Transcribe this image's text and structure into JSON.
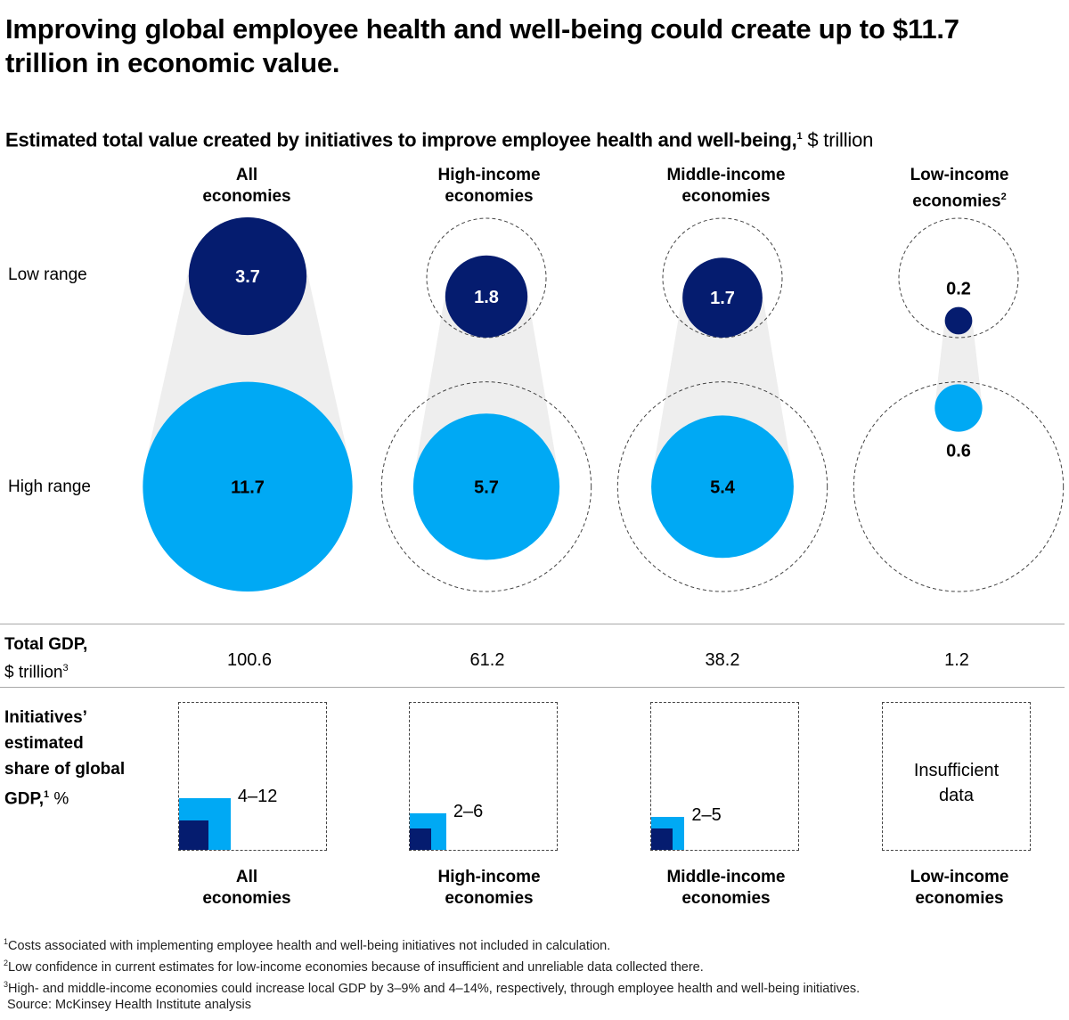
{
  "title": "Improving global employee health and well-being could create up to $11.7 trillion in economic value.",
  "subtitle": {
    "main": "Estimated total value created by initiatives to improve employee health and well-being,",
    "footnote_ref": "1",
    "unit": "$ trillion"
  },
  "columns": [
    {
      "label": "All economies",
      "label_line1": "All",
      "label_line2": "economies",
      "footnote_ref": ""
    },
    {
      "label": "High-income economies",
      "label_line1": "High-income",
      "label_line2": "economies",
      "footnote_ref": ""
    },
    {
      "label": "Middle-income economies",
      "label_line1": "Middle-income",
      "label_line2": "economies",
      "footnote_ref": ""
    },
    {
      "label": "Low-income economies",
      "label_line1": "Low-income",
      "label_line2": "economies",
      "footnote_ref": "2"
    }
  ],
  "row_labels": {
    "low": "Low range",
    "high": "High range"
  },
  "gdp": {
    "label_line1": "Total GDP,",
    "label_line2": "$ trillion",
    "footnote_ref": "3",
    "values": [
      "100.6",
      "61.2",
      "38.2",
      "1.2"
    ]
  },
  "share": {
    "label_line1": "Initiatives’",
    "label_line2": "estimated",
    "label_line3": "share of global",
    "label_line4": "GDP,",
    "footnote_ref": "1",
    "unit": "%",
    "values": [
      "4–12",
      "2–6",
      "2–5",
      ""
    ],
    "insufficient_line1": "Insufficient",
    "insufficient_line2": "data"
  },
  "footnotes": [
    {
      "ref": "1",
      "text": "Costs associated with implementing employee health and well-being initiatives not included in calculation."
    },
    {
      "ref": "2",
      "text": "Low confidence in current estimates for low-income economies because of insufficient and unreliable data collected there."
    },
    {
      "ref": "3",
      "text": "High- and middle-income economies could increase local GDP by 3–9% and 4–14%, respectively, through employee health and well-being initiatives."
    }
  ],
  "source": "Source: McKinsey Health Institute analysis",
  "colors": {
    "low_range": "#051c6f",
    "high_range": "#00a9f4",
    "connector": "#eeeeee",
    "outline": "#444444"
  },
  "chart_data": {
    "type": "bubble",
    "title": "Estimated total value created by initiatives to improve employee health and well-being, $ trillion",
    "categories": [
      "All economies",
      "High-income economies",
      "Middle-income economies",
      "Low-income economies"
    ],
    "series": [
      {
        "name": "Low range",
        "values": [
          3.7,
          1.8,
          1.7,
          0.2
        ],
        "labels": [
          "3.7",
          "1.8",
          "1.7",
          "0.2"
        ]
      },
      {
        "name": "High range",
        "values": [
          11.7,
          5.7,
          5.4,
          0.6
        ],
        "labels": [
          "11.7",
          "5.7",
          "5.4",
          "0.6"
        ]
      }
    ],
    "reference_outline_value": 11.7,
    "total_gdp_trillion": [
      100.6,
      61.2,
      38.2,
      1.2
    ],
    "share_of_gdp_percent": [
      {
        "low": 4,
        "high": 12
      },
      {
        "low": 2,
        "high": 6
      },
      {
        "low": 2,
        "high": 5
      },
      null
    ]
  }
}
